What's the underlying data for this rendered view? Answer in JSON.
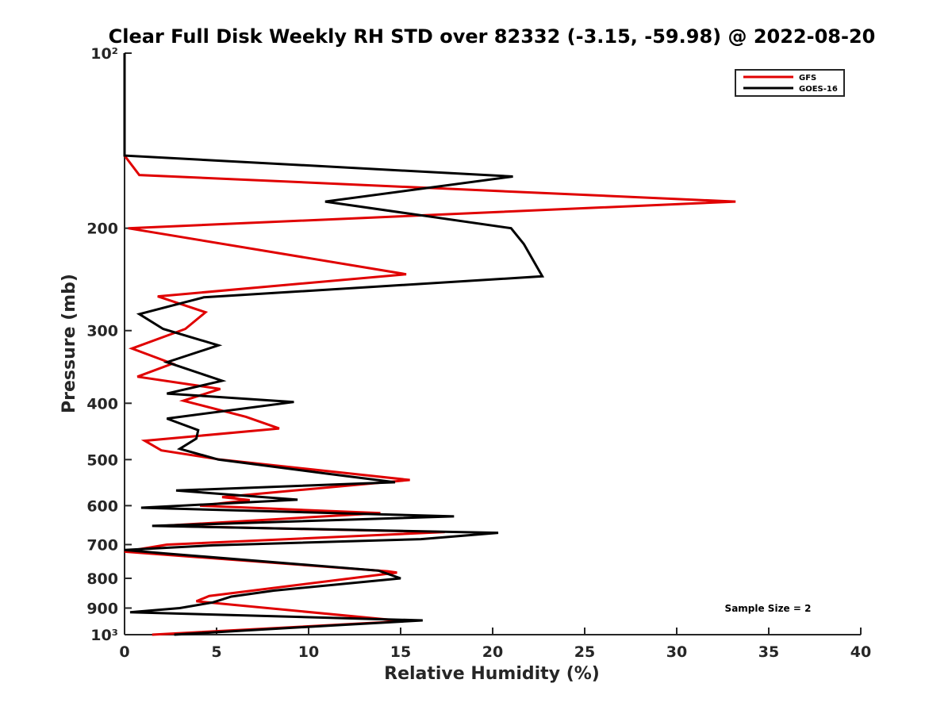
{
  "chart_data": {
    "type": "line",
    "title": "Clear Full Disk Weekly RH STD over 82332 (-3.15, -59.98) @ 2022-08-20",
    "xlabel": "Relative Humidity (%)",
    "ylabel": "Pressure (mb)",
    "xlim": [
      0,
      40
    ],
    "ylim": [
      100,
      1000
    ],
    "y_scale": "log",
    "y_reversed": true,
    "x_ticks": [
      0,
      5,
      10,
      15,
      20,
      25,
      30,
      35,
      40
    ],
    "x_tick_labels": [
      "0",
      "5",
      "10",
      "15",
      "20",
      "25",
      "30",
      "35",
      "40"
    ],
    "y_ticks": [
      100,
      200,
      300,
      400,
      500,
      600,
      700,
      800,
      900,
      1000
    ],
    "y_tick_labels": [
      "10²",
      "200",
      "300",
      "400",
      "500",
      "600",
      "700",
      "800",
      "900",
      "10³"
    ],
    "grid": false,
    "legend_position": "top-right",
    "annotation": "Sample Size = 2",
    "series": [
      {
        "name": "GFS",
        "color": "#e00000",
        "points": [
          [
            0,
            100
          ],
          [
            0,
            150
          ],
          [
            0.8,
            162
          ],
          [
            33.2,
            180
          ],
          [
            0.2,
            200
          ],
          [
            15.3,
            240
          ],
          [
            1.8,
            262
          ],
          [
            4.4,
            279
          ],
          [
            3.3,
            298
          ],
          [
            0.4,
            322
          ],
          [
            2.6,
            342
          ],
          [
            0.7,
            360
          ],
          [
            5.2,
            378
          ],
          [
            3.2,
            396
          ],
          [
            6.6,
            422
          ],
          [
            8.4,
            442
          ],
          [
            1.1,
            464
          ],
          [
            2.0,
            482
          ],
          [
            5.2,
            500
          ],
          [
            15.5,
            542
          ],
          [
            5.3,
            580
          ],
          [
            6.8,
            587
          ],
          [
            4.1,
            600
          ],
          [
            13.9,
            618
          ],
          [
            2.0,
            650
          ],
          [
            17.4,
            666
          ],
          [
            2.3,
            700
          ],
          [
            0,
            720
          ],
          [
            14.3,
            778
          ],
          [
            14.8,
            782
          ],
          [
            4.6,
            858
          ],
          [
            3.9,
            876
          ],
          [
            15.2,
            948
          ],
          [
            1.5,
            1000
          ]
        ]
      },
      {
        "name": "GOES-16",
        "color": "#000000",
        "points": [
          [
            0,
            100
          ],
          [
            0,
            150
          ],
          [
            21.1,
            163
          ],
          [
            10.9,
            180
          ],
          [
            21.0,
            200
          ],
          [
            21.7,
            213
          ],
          [
            22.7,
            242
          ],
          [
            4.3,
            263
          ],
          [
            0.8,
            281
          ],
          [
            2.1,
            298
          ],
          [
            5.1,
            318
          ],
          [
            2.3,
            340
          ],
          [
            5.3,
            366
          ],
          [
            2.3,
            385
          ],
          [
            9.2,
            398
          ],
          [
            2.3,
            425
          ],
          [
            4.0,
            445
          ],
          [
            3.9,
            460
          ],
          [
            3.0,
            479
          ],
          [
            5.1,
            500
          ],
          [
            10.9,
            528
          ],
          [
            14.7,
            547
          ],
          [
            2.8,
            565
          ],
          [
            9.4,
            586
          ],
          [
            0.9,
            605
          ],
          [
            17.9,
            626
          ],
          [
            1.5,
            650
          ],
          [
            20.3,
            668
          ],
          [
            16.1,
            685
          ],
          [
            4.8,
            702
          ],
          [
            0,
            715
          ],
          [
            2.2,
            725
          ],
          [
            13.8,
            776
          ],
          [
            15.0,
            800
          ],
          [
            8.1,
            840
          ],
          [
            5.8,
            860
          ],
          [
            4.8,
            880
          ],
          [
            3.0,
            900
          ],
          [
            0.3,
            915
          ],
          [
            16.2,
            945
          ],
          [
            11.8,
            962
          ],
          [
            2.7,
            1000
          ]
        ]
      }
    ]
  }
}
